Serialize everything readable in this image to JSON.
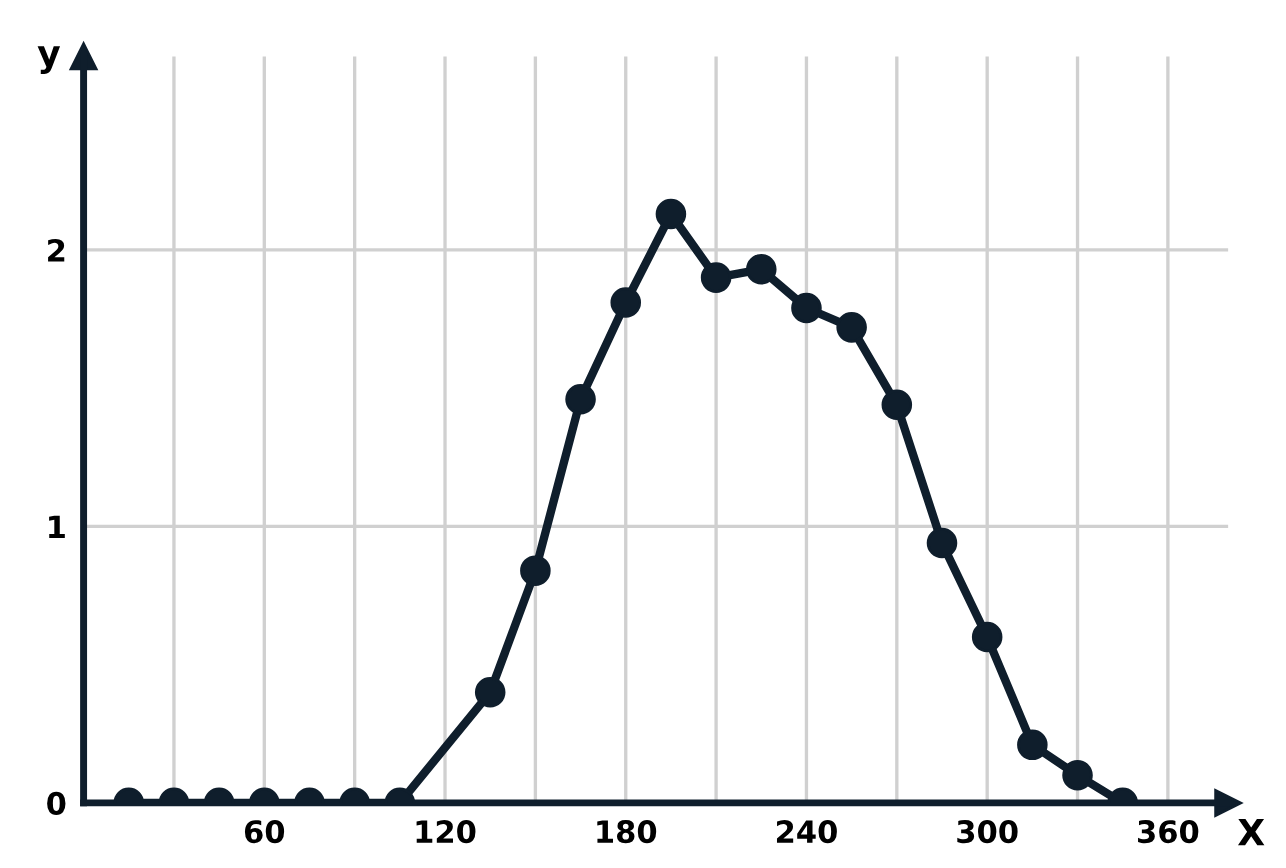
{
  "chart_data": {
    "type": "line",
    "xlabel": "X",
    "ylabel": "y",
    "x": [
      15,
      30,
      45,
      60,
      75,
      90,
      105,
      135,
      150,
      165,
      180,
      195,
      210,
      225,
      240,
      255,
      270,
      285,
      300,
      315,
      330,
      345
    ],
    "series": [
      {
        "color": "#0f1e2c",
        "values": [
          0,
          0,
          0,
          0,
          0,
          0,
          0,
          0.4,
          0.84,
          1.46,
          1.81,
          2.13,
          1.9,
          1.93,
          1.79,
          1.72,
          1.44,
          0.94,
          0.6,
          0.21,
          0.1,
          0
        ]
      }
    ],
    "xlim": [
      0,
      380
    ],
    "ylim": [
      0,
      2.7
    ],
    "xticks": [
      {
        "value": 30,
        "label": null
      },
      60,
      {
        "value": 90,
        "label": null
      },
      120,
      {
        "value": 150,
        "label": null
      },
      180,
      {
        "value": 210,
        "label": null
      },
      240,
      {
        "value": 270,
        "label": null
      },
      300,
      {
        "value": 330,
        "label": null
      },
      360
    ],
    "yticks": [
      0,
      1,
      2
    ],
    "grid": true,
    "marker": "circle",
    "line_style": "solid"
  }
}
